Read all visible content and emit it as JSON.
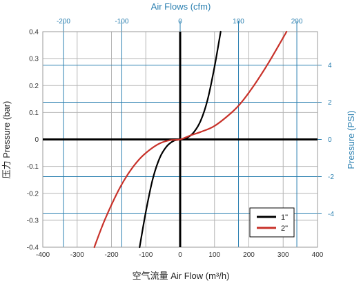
{
  "chart_data": {
    "type": "line",
    "title_top": "Air Flows (cfm)",
    "xlabel": "空气流量 Air Flow (m³/h)",
    "ylabel": "压力 Pressure (bar)",
    "ylabel_right": "Pressure (PSI)",
    "xlim": [
      -400,
      400
    ],
    "ylim": [
      -0.4,
      0.4
    ],
    "x_ticks": [
      "-400",
      "-300",
      "-200",
      "-100",
      "0",
      "100",
      "200",
      "300",
      "400"
    ],
    "y_ticks": [
      "-0.4",
      "-0.3",
      "-0.2",
      "-0.1",
      "0",
      "0.1",
      "0.2",
      "0.3",
      "0.4"
    ],
    "top_axis": {
      "unit": "cfm",
      "ticks": [
        {
          "label": "-200",
          "value": -200
        },
        {
          "label": "-100",
          "value": -100
        },
        {
          "label": "0",
          "value": 0
        },
        {
          "label": "100",
          "value": 100
        },
        {
          "label": "200",
          "value": 200
        }
      ]
    },
    "right_axis": {
      "unit": "PSI",
      "ticks": [
        {
          "label": "4",
          "value": 4
        },
        {
          "label": "2",
          "value": 2
        },
        {
          "label": "0",
          "value": 0
        },
        {
          "label": "-2",
          "value": -2
        },
        {
          "label": "-4",
          "value": -4
        }
      ]
    },
    "grid": true,
    "legend_position": "bottom-right",
    "series": [
      {
        "name": "1\"",
        "color": "#000000",
        "x": [
          -118,
          -100,
          -80,
          -60,
          -40,
          -20,
          0,
          20,
          40,
          60,
          80,
          100,
          118
        ],
        "y": [
          -0.4,
          -0.269,
          -0.148,
          -0.07,
          -0.027,
          -0.006,
          0,
          0.006,
          0.027,
          0.07,
          0.148,
          0.269,
          0.4
        ]
      },
      {
        "name": "2\"",
        "color": "#c8322a",
        "x": [
          -250,
          -220,
          -180,
          -150,
          -120,
          -90,
          -60,
          -30,
          0,
          30,
          60,
          100,
          150,
          180,
          220,
          260,
          310
        ],
        "y": [
          -0.4,
          -0.3,
          -0.19,
          -0.125,
          -0.075,
          -0.04,
          -0.015,
          -0.003,
          0,
          0.015,
          0.028,
          0.05,
          0.1,
          0.14,
          0.21,
          0.29,
          0.4
        ]
      }
    ]
  }
}
